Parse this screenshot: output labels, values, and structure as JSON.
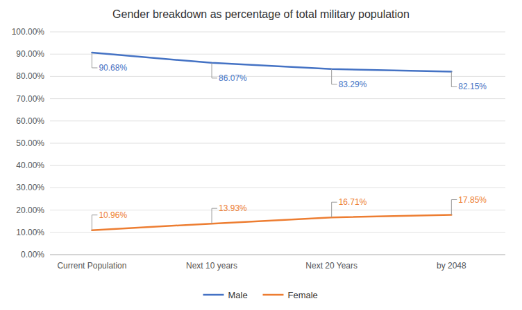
{
  "chart_data": {
    "type": "line",
    "title": "Gender breakdown as percentage of total military population",
    "categories": [
      "Current Population",
      "Next 10 years",
      "Next 20 Years",
      "by 2048"
    ],
    "series": [
      {
        "name": "Male",
        "color": "#4472C4",
        "values": [
          0.9068,
          0.8607,
          0.8329,
          0.8215
        ],
        "value_labels": [
          "90.68%",
          "86.07%",
          "83.29%",
          "82.15%"
        ]
      },
      {
        "name": "Female",
        "color": "#ED7D31",
        "values": [
          0.1096,
          0.1393,
          0.1671,
          0.1785
        ],
        "value_labels": [
          "10.96%",
          "13.93%",
          "16.71%",
          "17.85%"
        ]
      }
    ],
    "ylim": [
      0.0,
      1.0
    ],
    "yticks": [
      {
        "value": 0.0,
        "label": "0.00%"
      },
      {
        "value": 0.1,
        "label": "10.00%"
      },
      {
        "value": 0.2,
        "label": "20.00%"
      },
      {
        "value": 0.3,
        "label": "30.00%"
      },
      {
        "value": 0.4,
        "label": "40.00%"
      },
      {
        "value": 0.5,
        "label": "50.00%"
      },
      {
        "value": 0.6,
        "label": "60.00%"
      },
      {
        "value": 0.7,
        "label": "70.00%"
      },
      {
        "value": 0.8,
        "label": "80.00%"
      },
      {
        "value": 0.9,
        "label": "90.00%"
      },
      {
        "value": 1.0,
        "label": "100.00%"
      }
    ],
    "grid": true,
    "legend": "bottom",
    "data_labels": true
  }
}
